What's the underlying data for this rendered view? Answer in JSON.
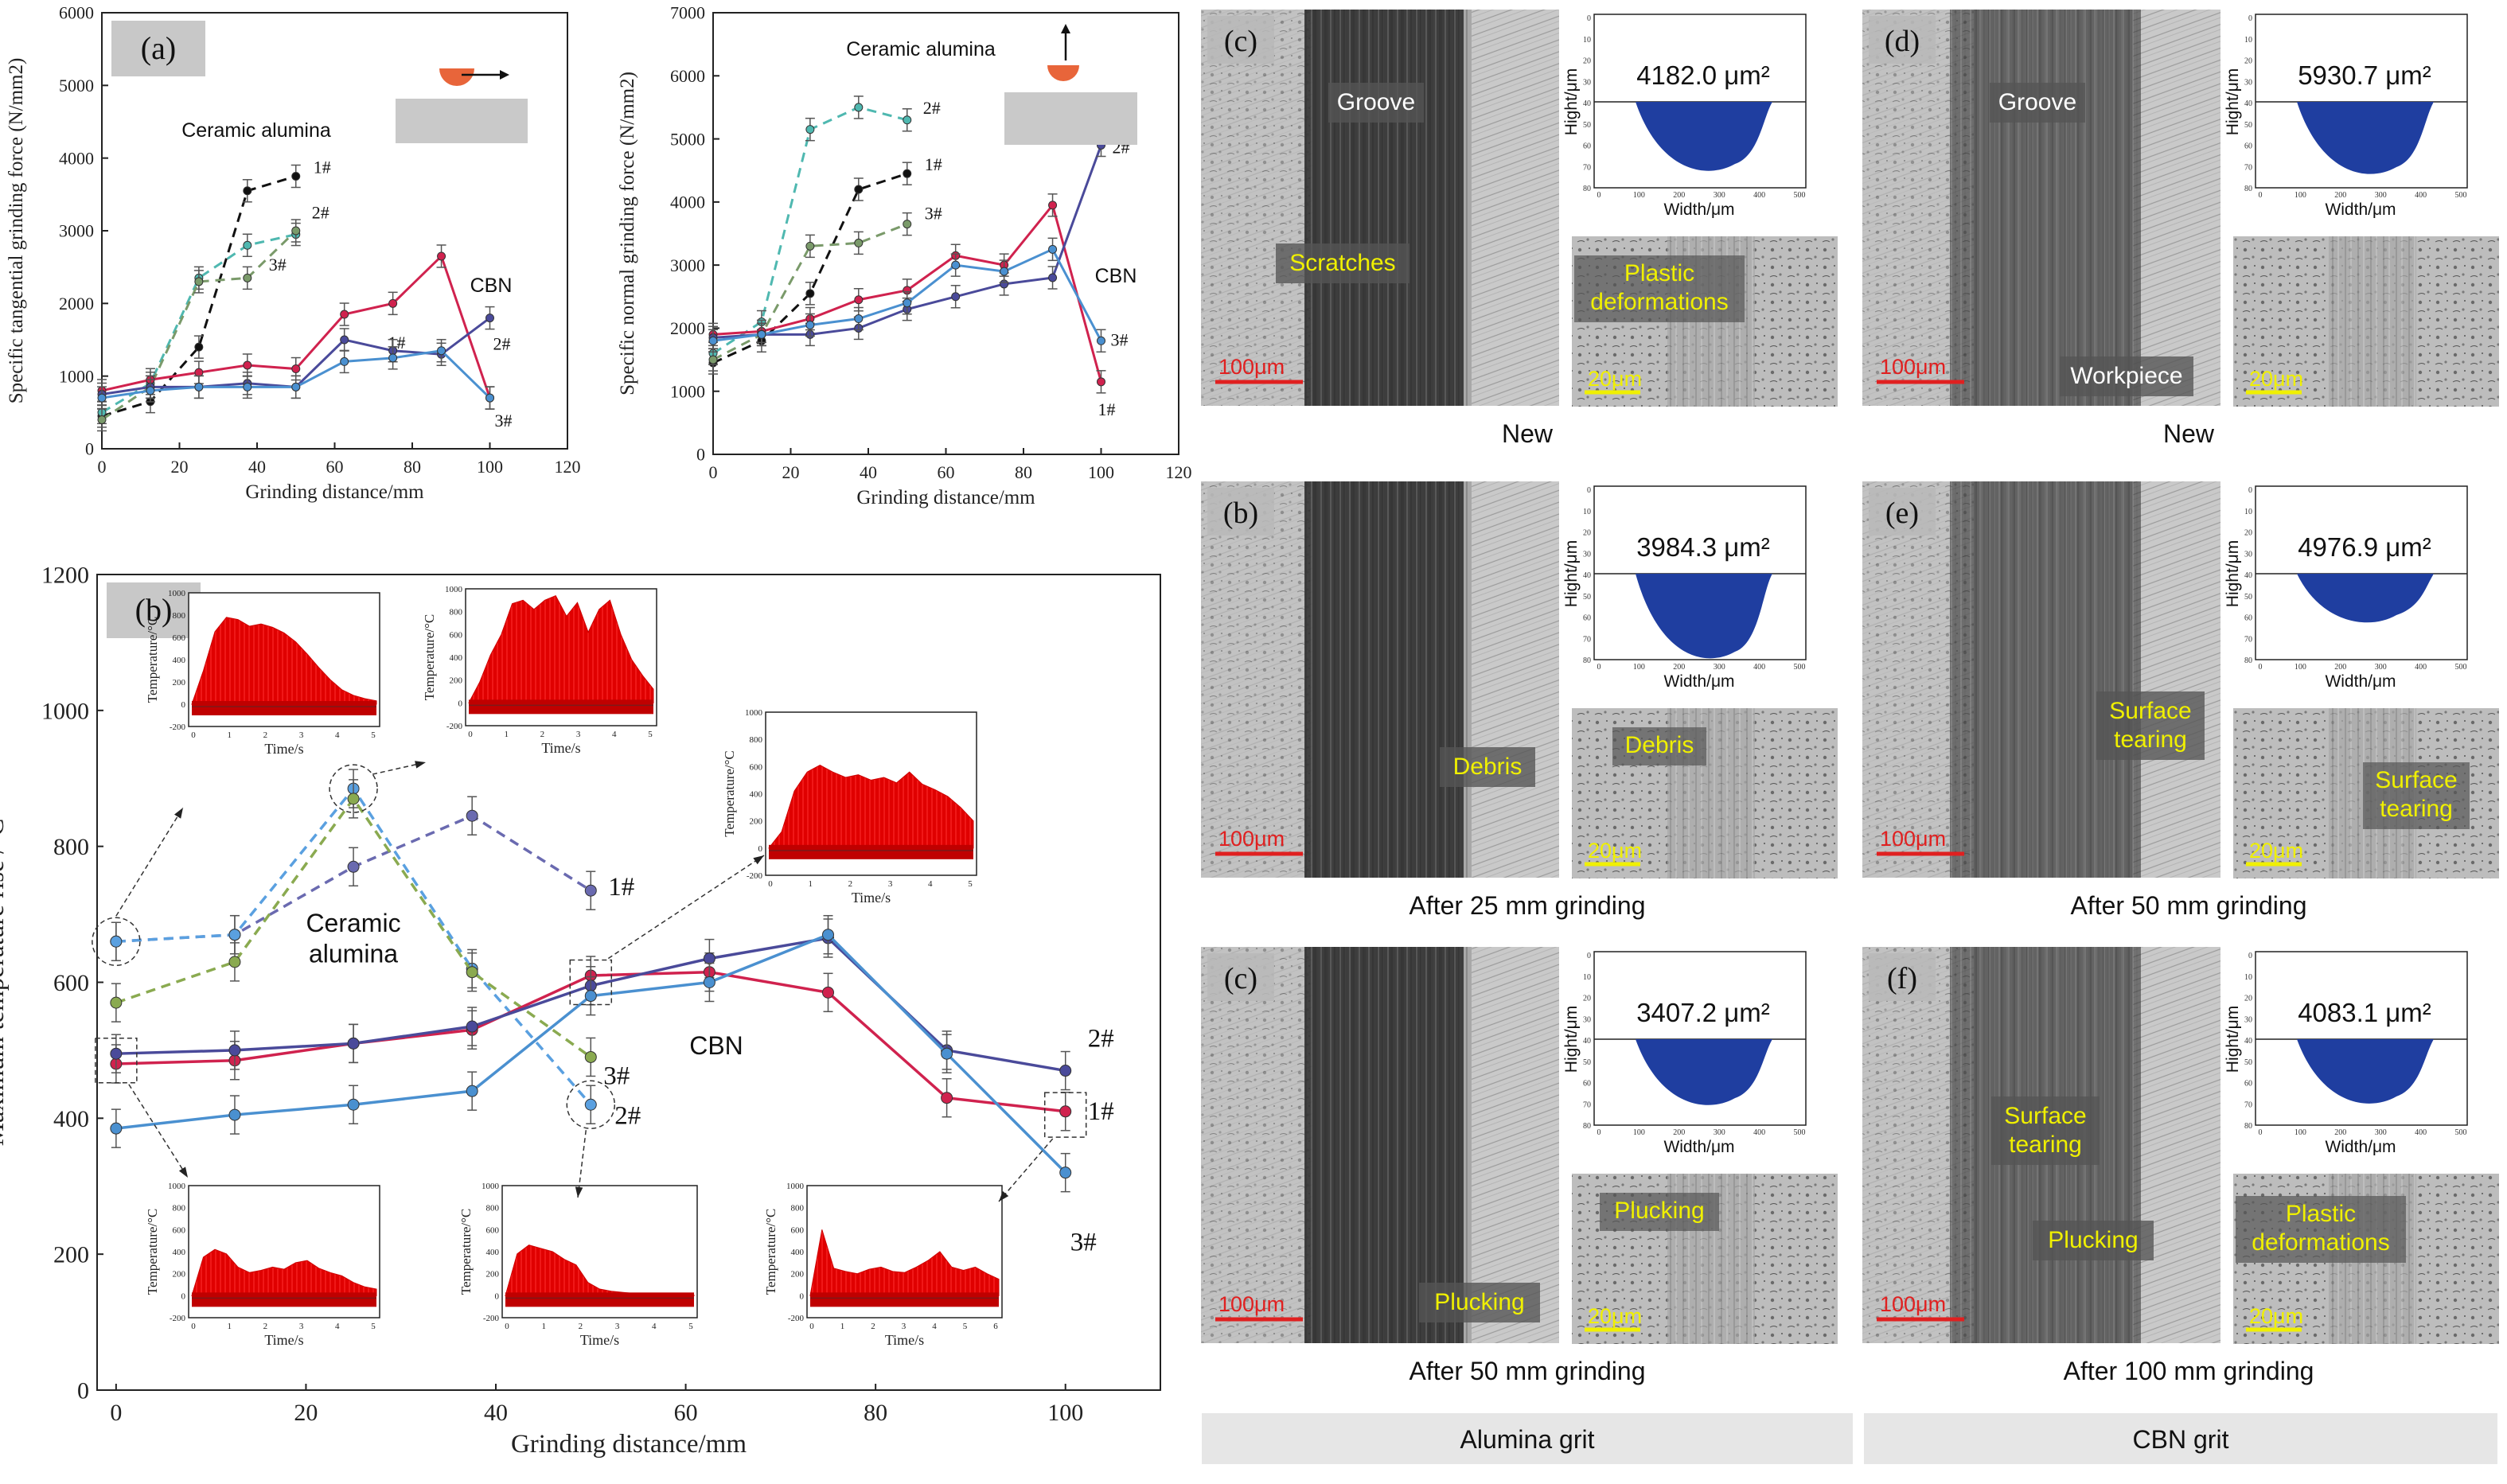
{
  "colors": {
    "alumina_1": "#111111",
    "alumina_2": "#4fb8b0",
    "alumina_3": "#7a9a6a",
    "cbn_1": "#d0224e",
    "cbn_2": "#4a4a9a",
    "cbn_3": "#4a90d0",
    "b_alumina_1": "#6a6ab0",
    "b_alumina_2": "#5aa0e0",
    "b_alumina_3": "#8aaa50",
    "b_cbn_1": "#d0224e",
    "b_cbn_2": "#4a4a9a",
    "b_cbn_3": "#4a90d0",
    "hist_fill": "#e00000",
    "label_yellow": "#f0f000",
    "profile_blue": "#1f3ea0",
    "caption_bg": "#e6e6e6"
  },
  "chart_data": [
    {
      "id": "a-tangential",
      "type": "line",
      "panel_label": "(a)",
      "xlabel": "Grinding distance/mm",
      "ylabel": "Specific tangential grinding force (N/mm2)",
      "xlim": [
        0,
        120
      ],
      "ylim": [
        0,
        6000
      ],
      "xticks": [
        "0",
        "20",
        "40",
        "60",
        "80",
        "100",
        "120"
      ],
      "yticks": [
        "0",
        "1000",
        "2000",
        "3000",
        "4000",
        "5000",
        "6000"
      ],
      "group_labels": [
        "Ceramic alumina",
        "CBN"
      ],
      "series": [
        {
          "name": "1#",
          "group": "alumina",
          "dashed": true,
          "color_key": "alumina_1",
          "x": [
            0,
            12.5,
            25,
            37.5,
            50
          ],
          "y": [
            450,
            650,
            1400,
            3550,
            3750
          ]
        },
        {
          "name": "2#",
          "group": "alumina",
          "dashed": true,
          "color_key": "alumina_2",
          "x": [
            0,
            12.5,
            25,
            37.5,
            50
          ],
          "y": [
            500,
            900,
            2350,
            2800,
            2950
          ]
        },
        {
          "name": "3#",
          "group": "alumina",
          "dashed": true,
          "color_key": "alumina_3",
          "x": [
            0,
            12.5,
            25,
            37.5,
            50
          ],
          "y": [
            400,
            850,
            2300,
            2350,
            3000
          ]
        },
        {
          "name": "1#",
          "group": "cbn",
          "dashed": false,
          "color_key": "cbn_1",
          "x": [
            0,
            12.5,
            25,
            37.5,
            50,
            62.5,
            75,
            87.5,
            100
          ],
          "y": [
            800,
            950,
            1050,
            1150,
            1100,
            1850,
            2000,
            2650,
            700
          ]
        },
        {
          "name": "2#",
          "group": "cbn",
          "dashed": false,
          "color_key": "cbn_2",
          "x": [
            0,
            12.5,
            25,
            37.5,
            50,
            62.5,
            75,
            87.5,
            100
          ],
          "y": [
            750,
            850,
            850,
            900,
            850,
            1500,
            1350,
            1300,
            1800
          ]
        },
        {
          "name": "3#",
          "group": "cbn",
          "dashed": false,
          "color_key": "cbn_3",
          "x": [
            0,
            12.5,
            25,
            37.5,
            50,
            62.5,
            75,
            87.5,
            100
          ],
          "y": [
            700,
            800,
            850,
            850,
            850,
            1200,
            1250,
            1350,
            700
          ]
        }
      ]
    },
    {
      "id": "a-normal",
      "type": "line",
      "panel_label": "",
      "xlabel": "Grinding distance/mm",
      "ylabel": "Specific normal grinding force (N/mm2)",
      "xlim": [
        0,
        120
      ],
      "ylim": [
        0,
        7000
      ],
      "xticks": [
        "0",
        "20",
        "40",
        "60",
        "80",
        "100",
        "120"
      ],
      "yticks": [
        "0",
        "1000",
        "2000",
        "3000",
        "4000",
        "5000",
        "6000",
        "7000"
      ],
      "group_labels": [
        "Ceramic alumina",
        "CBN"
      ],
      "series": [
        {
          "name": "1#",
          "group": "alumina",
          "dashed": true,
          "color_key": "alumina_1",
          "x": [
            0,
            12.5,
            25,
            37.5,
            50
          ],
          "y": [
            1450,
            1800,
            2550,
            4200,
            4450
          ]
        },
        {
          "name": "2#",
          "group": "alumina",
          "dashed": true,
          "color_key": "alumina_2",
          "x": [
            0,
            12.5,
            25,
            37.5,
            50
          ],
          "y": [
            1600,
            2100,
            5150,
            5500,
            5300
          ]
        },
        {
          "name": "3#",
          "group": "alumina",
          "dashed": true,
          "color_key": "alumina_3",
          "x": [
            0,
            12.5,
            25,
            37.5,
            50
          ],
          "y": [
            1500,
            1900,
            3300,
            3350,
            3650
          ]
        },
        {
          "name": "1#",
          "group": "cbn",
          "dashed": false,
          "color_key": "cbn_1",
          "x": [
            0,
            12.5,
            25,
            37.5,
            50,
            62.5,
            75,
            87.5,
            100
          ],
          "y": [
            1900,
            1950,
            2150,
            2450,
            2600,
            3150,
            3000,
            3950,
            1150
          ]
        },
        {
          "name": "2#",
          "group": "cbn",
          "dashed": false,
          "color_key": "cbn_2",
          "x": [
            0,
            12.5,
            25,
            37.5,
            50,
            62.5,
            75,
            87.5,
            100
          ],
          "y": [
            1850,
            1900,
            1900,
            2000,
            2300,
            2500,
            2700,
            2800,
            4900
          ]
        },
        {
          "name": "3#",
          "group": "cbn",
          "dashed": false,
          "color_key": "cbn_3",
          "x": [
            0,
            12.5,
            25,
            37.5,
            50,
            62.5,
            75,
            87.5,
            100
          ],
          "y": [
            1800,
            1900,
            2050,
            2150,
            2400,
            3000,
            2900,
            3250,
            1800
          ]
        }
      ]
    },
    {
      "id": "b-temperature",
      "type": "line",
      "panel_label": "(b)",
      "xlabel": "Grinding distance/mm",
      "ylabel": "Maximum temperature rise  /°C",
      "xlim": [
        -2,
        110
      ],
      "ylim": [
        0,
        1200
      ],
      "xticks": [
        "0",
        "20",
        "40",
        "60",
        "80",
        "100"
      ],
      "yticks": [
        "0",
        "200",
        "400",
        "600",
        "800",
        "1000",
        "1200"
      ],
      "group_labels": [
        "Ceramic\nalumina",
        "CBN"
      ],
      "series": [
        {
          "name": "1#",
          "group": "alumina",
          "dashed": true,
          "color_key": "b_alumina_1",
          "x": [
            0,
            12.5,
            25,
            37.5,
            50
          ],
          "y": [
            660,
            670,
            770,
            845,
            735
          ]
        },
        {
          "name": "2#",
          "group": "alumina",
          "dashed": true,
          "color_key": "b_alumina_2",
          "x": [
            0,
            12.5,
            25,
            37.5,
            50
          ],
          "y": [
            660,
            670,
            885,
            620,
            420
          ]
        },
        {
          "name": "3#",
          "group": "alumina",
          "dashed": true,
          "color_key": "b_alumina_3",
          "x": [
            0,
            12.5,
            25,
            37.5,
            50
          ],
          "y": [
            570,
            630,
            870,
            615,
            490
          ]
        },
        {
          "name": "1#",
          "group": "cbn",
          "dashed": false,
          "color_key": "b_cbn_1",
          "x": [
            0,
            12.5,
            25,
            37.5,
            50,
            62.5,
            75,
            87.5,
            100
          ],
          "y": [
            480,
            485,
            510,
            530,
            610,
            615,
            585,
            430,
            410
          ]
        },
        {
          "name": "2#",
          "group": "cbn",
          "dashed": false,
          "color_key": "b_cbn_2",
          "x": [
            0,
            12.5,
            25,
            37.5,
            50,
            62.5,
            75,
            87.5,
            100
          ],
          "y": [
            495,
            500,
            510,
            535,
            595,
            635,
            665,
            500,
            470
          ]
        },
        {
          "name": "3#",
          "group": "cbn",
          "dashed": false,
          "color_key": "b_cbn_3",
          "x": [
            0,
            12.5,
            25,
            37.5,
            50,
            62.5,
            75,
            87.5,
            100
          ],
          "y": [
            385,
            405,
            420,
            440,
            580,
            600,
            670,
            495,
            320
          ]
        }
      ]
    }
  ],
  "insets": {
    "y_label": "Temperature/°C",
    "x_label": "Time/s",
    "y_ticks": [
      "1000",
      "800",
      "600",
      "400",
      "200",
      "0",
      "-200"
    ]
  },
  "micro_panels": [
    {
      "id": "c",
      "letter": "(c)",
      "area": "4182.0 μm²",
      "scale_main": "100μm",
      "scale_zoom": "20μm",
      "caption": "New",
      "main_labels": [
        "Groove",
        "Scratches"
      ],
      "zoom_labels": [
        "Plastic\ndeformations"
      ]
    },
    {
      "id": "d",
      "letter": "(d)",
      "area": "5930.7 μm²",
      "scale_main": "100μm",
      "scale_zoom": "20μm",
      "caption": "New",
      "main_labels": [
        "Groove",
        "Workpiece"
      ],
      "zoom_labels": []
    },
    {
      "id": "b2",
      "letter": "(b)",
      "area": "3984.3 μm²",
      "scale_main": "100μm",
      "scale_zoom": "20μm",
      "caption": "After 25 mm grinding",
      "main_labels": [
        "Debris"
      ],
      "zoom_labels": [
        "Debris"
      ]
    },
    {
      "id": "e",
      "letter": "(e)",
      "area": "4976.9 μm²",
      "scale_main": "100μm",
      "scale_zoom": "20μm",
      "caption": "After 50 mm grinding",
      "main_labels": [
        "Surface\ntearing"
      ],
      "zoom_labels": [
        "Surface\ntearing"
      ]
    },
    {
      "id": "c2",
      "letter": "(c)",
      "area": "3407.2 μm²",
      "scale_main": "100μm",
      "scale_zoom": "20μm",
      "caption": "After 50 mm grinding",
      "main_labels": [
        "Plucking"
      ],
      "zoom_labels": [
        "Plucking"
      ]
    },
    {
      "id": "f",
      "letter": "(f)",
      "area": "4083.1 μm²",
      "scale_main": "100μm",
      "scale_zoom": "20μm",
      "caption": "After 100 mm grinding",
      "main_labels": [
        "Surface\ntearing",
        "Plucking"
      ],
      "zoom_labels": [
        "Plastic\ndeformations"
      ]
    }
  ],
  "profile_axes": {
    "ylabel": "Hight/μm",
    "xlabel": "Width/μm"
  },
  "column_captions": {
    "left": "Alumina grit",
    "right": "CBN grit"
  }
}
